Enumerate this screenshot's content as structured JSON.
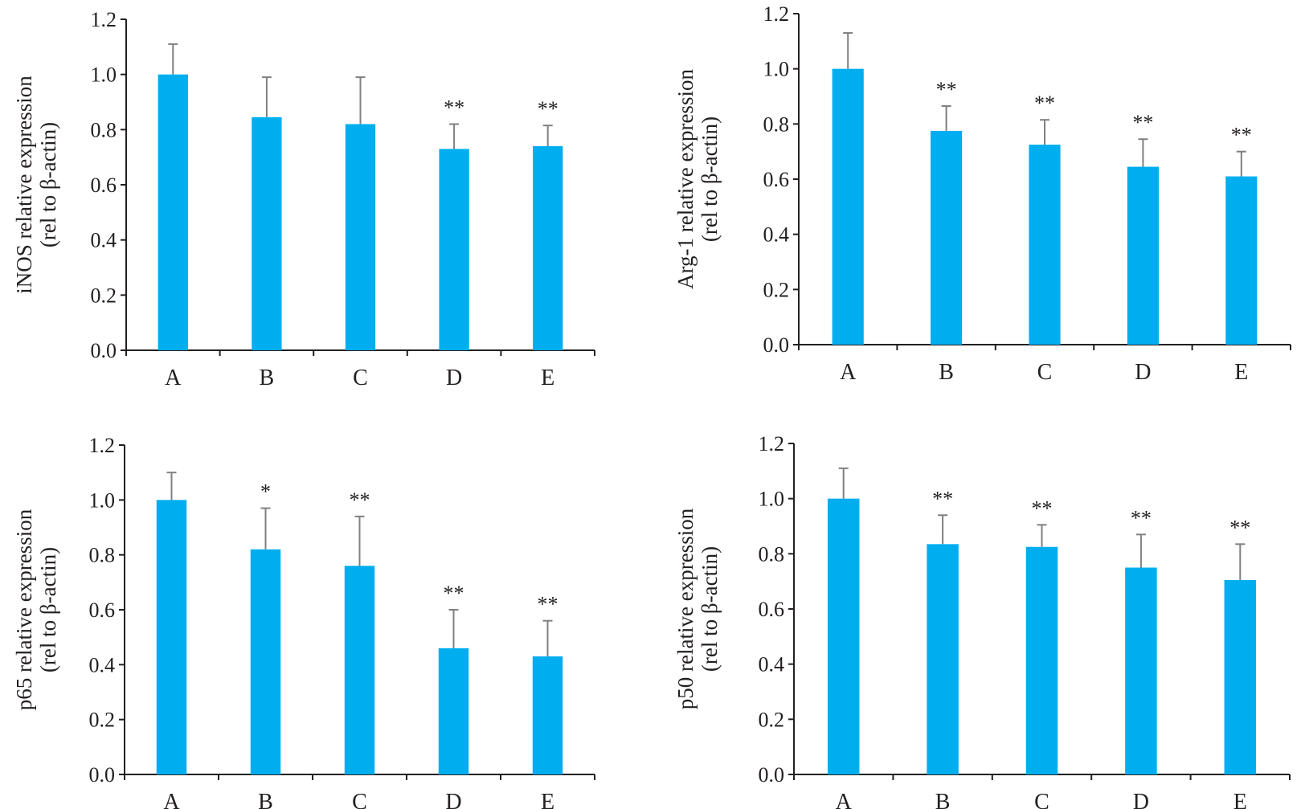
{
  "chart_data": [
    {
      "type": "bar",
      "title": "",
      "xlabel": "",
      "ylabel": [
        "iNOS relative expression",
        "(rel to β-actin)"
      ],
      "ylim": [
        0,
        1.2
      ],
      "yticks": [
        "0.0",
        "0.2",
        "0.4",
        "0.6",
        "0.8",
        "1.0",
        "1.2"
      ],
      "categories": [
        "A",
        "B",
        "C",
        "D",
        "E"
      ],
      "values": [
        1.0,
        0.845,
        0.82,
        0.73,
        0.74
      ],
      "error_upper": [
        1.11,
        0.99,
        0.99,
        0.82,
        0.815
      ],
      "significance": [
        "",
        "",
        "",
        "**",
        "**"
      ],
      "color": "#00aeef",
      "grid": false
    },
    {
      "type": "bar",
      "title": "",
      "xlabel": "",
      "ylabel": [
        "Arg-1 relative expression",
        "(rel to β-actin)"
      ],
      "ylim": [
        0,
        1.2
      ],
      "yticks": [
        "0.0",
        "0.2",
        "0.4",
        "0.6",
        "0.8",
        "1.0",
        "1.2"
      ],
      "categories": [
        "A",
        "B",
        "C",
        "D",
        "E"
      ],
      "values": [
        1.0,
        0.775,
        0.725,
        0.645,
        0.61
      ],
      "error_upper": [
        1.13,
        0.865,
        0.815,
        0.745,
        0.7
      ],
      "significance": [
        "",
        "**",
        "**",
        "**",
        "**"
      ],
      "color": "#00aeef",
      "grid": false
    },
    {
      "type": "bar",
      "title": "",
      "xlabel": "",
      "ylabel": [
        "p65 relative expression",
        "(rel to β-actin)"
      ],
      "ylim": [
        0,
        1.2
      ],
      "yticks": [
        "0.0",
        "0.2",
        "0.4",
        "0.6",
        "0.8",
        "1.0",
        "1.2"
      ],
      "categories": [
        "A",
        "B",
        "C",
        "D",
        "E"
      ],
      "values": [
        1.0,
        0.82,
        0.76,
        0.46,
        0.43
      ],
      "error_upper": [
        1.1,
        0.97,
        0.94,
        0.6,
        0.56
      ],
      "significance": [
        "",
        "*",
        "**",
        "**",
        "**"
      ],
      "color": "#00aeef",
      "grid": false
    },
    {
      "type": "bar",
      "title": "",
      "xlabel": "",
      "ylabel": [
        "p50 relative expression",
        "(rel to β-actin)"
      ],
      "ylim": [
        0,
        1.2
      ],
      "yticks": [
        "0.0",
        "0.2",
        "0.4",
        "0.6",
        "0.8",
        "1.0",
        "1.2"
      ],
      "categories": [
        "A",
        "B",
        "C",
        "D",
        "E"
      ],
      "values": [
        1.0,
        0.835,
        0.825,
        0.75,
        0.705
      ],
      "error_upper": [
        1.11,
        0.94,
        0.905,
        0.87,
        0.835
      ],
      "significance": [
        "",
        "**",
        "**",
        "**",
        "**"
      ],
      "color": "#00aeef",
      "grid": false
    }
  ]
}
